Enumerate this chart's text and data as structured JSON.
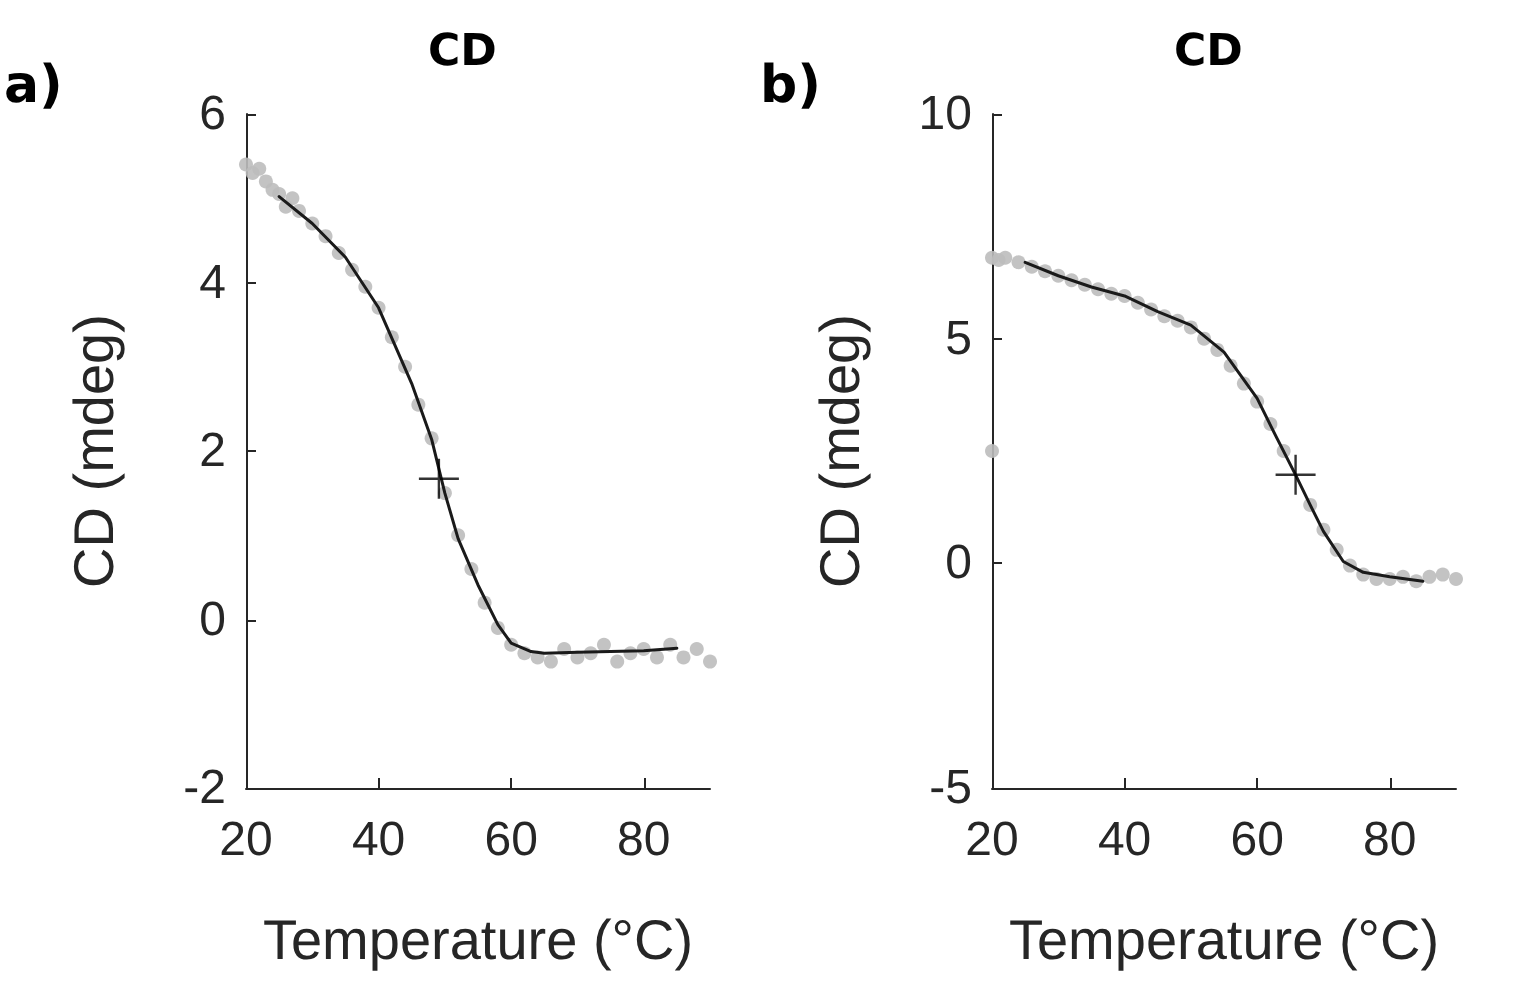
{
  "chart_data": [
    {
      "type": "scatter",
      "title": "CD",
      "xlabel": "Temperature (°C)",
      "ylabel": "CD (mdeg)",
      "annotations": [
        "a)"
      ],
      "xlim": [
        20,
        90
      ],
      "xticks": [
        20,
        40,
        60,
        80
      ],
      "ylim": [
        -2,
        6
      ],
      "yticks": [
        -2,
        0,
        2,
        4,
        6
      ],
      "grid": false,
      "series": [
        {
          "type": "scatter",
          "marker": "circle",
          "color": "#bdbdbd",
          "x": [
            20,
            21,
            22,
            23,
            24,
            25,
            26,
            27,
            28,
            30,
            32,
            34,
            36,
            38,
            40,
            42,
            44,
            46,
            48,
            50,
            52,
            54,
            56,
            58,
            60,
            62,
            64,
            66,
            68,
            70,
            72,
            74,
            76,
            78,
            80,
            82,
            84,
            86,
            88,
            90
          ],
          "values": [
            5.4,
            5.3,
            5.35,
            5.2,
            5.1,
            5.05,
            4.9,
            5.0,
            4.85,
            4.7,
            4.55,
            4.35,
            4.15,
            3.95,
            3.7,
            3.35,
            3.0,
            2.55,
            2.15,
            1.5,
            1.0,
            0.6,
            0.2,
            -0.1,
            -0.3,
            -0.4,
            -0.45,
            -0.5,
            -0.35,
            -0.45,
            -0.4,
            -0.3,
            -0.5,
            -0.4,
            -0.35,
            -0.45,
            -0.3,
            -0.45,
            -0.35,
            -0.5
          ]
        },
        {
          "type": "line",
          "marker": "none",
          "line_style": "solid",
          "color": "#1a1a1a",
          "x": [
            25,
            30,
            35,
            40,
            45,
            48,
            50,
            52,
            55,
            58,
            60,
            63,
            65,
            70,
            75,
            80,
            85
          ],
          "values": [
            5.02,
            4.7,
            4.3,
            3.7,
            2.8,
            2.14,
            1.5,
            0.96,
            0.41,
            -0.06,
            -0.28,
            -0.38,
            -0.4,
            -0.39,
            -0.38,
            -0.37,
            -0.34
          ]
        },
        {
          "type": "scatter",
          "marker": "cross",
          "color": "#000000",
          "x": [
            49.1
          ],
          "values": [
            1.67
          ]
        }
      ]
    },
    {
      "type": "scatter",
      "title": "CD",
      "xlabel": "Temperature (°C)",
      "ylabel": "CD (mdeg)",
      "annotations": [
        "b)"
      ],
      "xlim": [
        20,
        90
      ],
      "xticks": [
        20,
        40,
        60,
        80
      ],
      "ylim": [
        -5,
        10
      ],
      "yticks": [
        -5,
        0,
        5,
        10
      ],
      "grid": false,
      "series": [
        {
          "type": "scatter",
          "marker": "circle",
          "color": "#bdbdbd",
          "x": [
            20,
            20,
            21,
            22,
            24,
            26,
            28,
            30,
            32,
            34,
            36,
            38,
            40,
            42,
            44,
            46,
            48,
            50,
            52,
            54,
            56,
            58,
            60,
            62,
            64,
            66,
            68,
            70,
            72,
            74,
            76,
            78,
            80,
            82,
            84,
            86,
            88,
            90
          ],
          "values": [
            6.8,
            2.5,
            6.75,
            6.8,
            6.7,
            6.6,
            6.5,
            6.4,
            6.3,
            6.2,
            6.1,
            6.0,
            5.95,
            5.8,
            5.65,
            5.5,
            5.4,
            5.25,
            5.0,
            4.75,
            4.4,
            4.0,
            3.6,
            3.1,
            2.5,
            null,
            1.3,
            0.75,
            0.3,
            -0.05,
            -0.25,
            -0.35,
            -0.35,
            -0.3,
            -0.4,
            -0.3,
            -0.25,
            -0.35
          ]
        },
        {
          "type": "line",
          "marker": "none",
          "line_style": "solid",
          "color": "#1a1a1a",
          "x": [
            25,
            30,
            35,
            40,
            45,
            50,
            55,
            60,
            63,
            65.8,
            68,
            70,
            73,
            76,
            80,
            85
          ],
          "values": [
            6.7,
            6.4,
            6.15,
            5.95,
            5.6,
            5.3,
            4.7,
            3.67,
            2.78,
            1.97,
            1.3,
            0.71,
            0.04,
            -0.2,
            -0.3,
            -0.4
          ]
        },
        {
          "type": "scatter",
          "marker": "cross",
          "color": "#000000",
          "x": [
            65.8
          ],
          "values": [
            1.97
          ]
        }
      ]
    }
  ]
}
